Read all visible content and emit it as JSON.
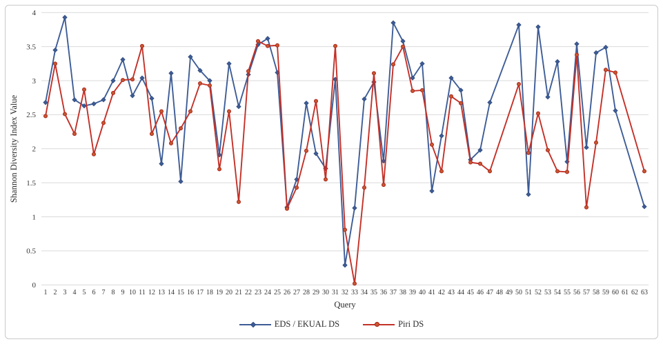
{
  "chart_data": {
    "type": "line",
    "title": "",
    "xlabel": "Query",
    "ylabel": "Shannon Diversity Index Value",
    "x": [
      1,
      2,
      3,
      4,
      5,
      6,
      7,
      8,
      9,
      10,
      11,
      12,
      13,
      14,
      15,
      16,
      17,
      18,
      19,
      20,
      21,
      22,
      23,
      24,
      25,
      26,
      27,
      28,
      29,
      30,
      31,
      32,
      33,
      34,
      35,
      36,
      37,
      38,
      39,
      40,
      41,
      42,
      43,
      44,
      45,
      46,
      47,
      48,
      49,
      50,
      51,
      52,
      53,
      54,
      55,
      56,
      57,
      58,
      59,
      60,
      61,
      62,
      63
    ],
    "yticks": [
      0,
      0.5,
      1,
      1.5,
      2,
      2.5,
      3,
      3.5,
      4
    ],
    "ytick_labels": [
      "0",
      "0.5",
      "1",
      "1.5",
      "2",
      "2.5",
      "3",
      "3.5",
      "4"
    ],
    "ylim": [
      0,
      4
    ],
    "grid": "horizontal",
    "legend_position": "bottom",
    "series": [
      {
        "name": "EDS / EKUAL DS",
        "color": "#3d5c96",
        "marker": "diamond",
        "marker_fill": "#3d5c96",
        "marker_stroke": "#2f4a7d",
        "values": [
          2.68,
          3.45,
          3.93,
          2.72,
          2.63,
          2.66,
          2.72,
          3.0,
          3.31,
          2.78,
          3.04,
          2.74,
          1.78,
          3.11,
          1.52,
          3.35,
          3.15,
          3.0,
          1.91,
          3.25,
          2.62,
          3.09,
          3.53,
          3.62,
          3.12,
          1.14,
          1.55,
          2.67,
          1.93,
          1.71,
          3.02,
          0.29,
          1.13,
          2.73,
          2.98,
          1.82,
          3.85,
          3.58,
          3.04,
          3.25,
          1.38,
          2.19,
          3.04,
          2.86,
          1.84,
          1.98,
          2.68,
          null,
          null,
          3.82,
          1.33,
          3.79,
          2.76,
          3.28,
          1.81,
          3.54,
          2.02,
          3.41,
          3.49,
          2.56,
          null,
          null,
          1.15
        ]
      },
      {
        "name": "Piri DS",
        "color": "#c33027",
        "marker": "circle",
        "marker_fill": "#c9582f",
        "marker_stroke": "#a8251c",
        "values": [
          2.48,
          3.25,
          2.51,
          2.22,
          2.87,
          1.92,
          2.38,
          2.82,
          3.01,
          3.02,
          3.51,
          2.22,
          2.55,
          2.08,
          2.3,
          2.55,
          2.96,
          2.93,
          1.7,
          2.55,
          1.22,
          3.14,
          3.58,
          3.51,
          3.52,
          1.12,
          1.43,
          1.97,
          2.7,
          1.55,
          3.51,
          0.81,
          0.02,
          1.43,
          3.11,
          1.47,
          3.24,
          3.5,
          2.85,
          2.86,
          2.06,
          1.67,
          2.77,
          2.67,
          1.8,
          1.78,
          1.67,
          null,
          null,
          2.95,
          1.94,
          2.52,
          1.98,
          1.67,
          1.66,
          3.38,
          1.14,
          2.09,
          3.16,
          3.12,
          null,
          null,
          1.67
        ]
      }
    ]
  },
  "frame": {
    "border_color": "#c9c9c9",
    "grid_color": "#d9d9d9",
    "tick_label_color": "#333333",
    "background": "#ffffff"
  }
}
